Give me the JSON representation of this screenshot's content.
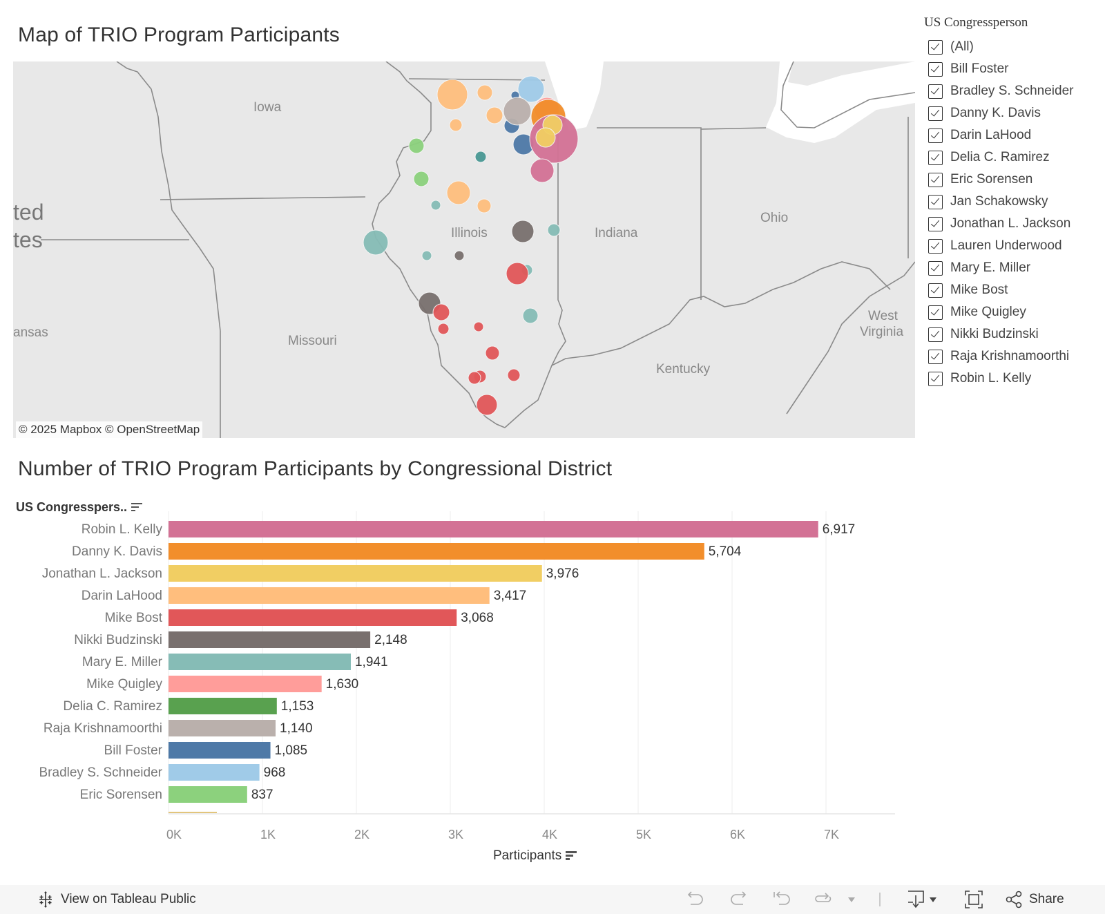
{
  "map_panel": {
    "title": "Map of TRIO Program Participants",
    "attribution": "© 2025 Mapbox  © OpenStreetMap",
    "labels": [
      {
        "text": "Iowa",
        "cls": ""
      },
      {
        "text": "Illinois",
        "cls": ""
      },
      {
        "text": "Indiana",
        "cls": ""
      },
      {
        "text": "Ohio",
        "cls": ""
      },
      {
        "text": "Missouri",
        "cls": ""
      },
      {
        "text": "Kentucky",
        "cls": ""
      },
      {
        "text": "West",
        "cls": ""
      },
      {
        "text": "Virginia",
        "cls": ""
      },
      {
        "text": "ansas",
        "cls": ""
      },
      {
        "text": "ted",
        "cls": "big"
      },
      {
        "text": "tes",
        "cls": "big"
      }
    ]
  },
  "filter": {
    "title": "US Congressperson",
    "items": [
      {
        "label": "(All)",
        "checked": true
      },
      {
        "label": "Bill Foster",
        "checked": true
      },
      {
        "label": "Bradley S. Schneider",
        "checked": true
      },
      {
        "label": "Danny K. Davis",
        "checked": true
      },
      {
        "label": "Darin LaHood",
        "checked": true
      },
      {
        "label": "Delia C. Ramirez",
        "checked": true
      },
      {
        "label": "Eric Sorensen",
        "checked": true
      },
      {
        "label": "Jan Schakowsky",
        "checked": true
      },
      {
        "label": "Jonathan L. Jackson",
        "checked": true
      },
      {
        "label": "Lauren Underwood",
        "checked": true
      },
      {
        "label": "Mary E. Miller",
        "checked": true
      },
      {
        "label": "Mike Bost",
        "checked": true
      },
      {
        "label": "Mike Quigley",
        "checked": true
      },
      {
        "label": "Nikki Budzinski",
        "checked": true
      },
      {
        "label": "Raja Krishnamoorthi",
        "checked": true
      },
      {
        "label": "Robin L. Kelly",
        "checked": true
      }
    ]
  },
  "colors": {
    "Robin L. Kelly": "#d37295",
    "Danny K. Davis": "#f28e2b",
    "Jonathan L. Jackson": "#f1ce63",
    "Darin LaHood": "#ffbe7d",
    "Mike Bost": "#e15759",
    "Nikki Budzinski": "#79706e",
    "Mary E. Miller": "#86bcb6",
    "Mike Quigley": "#ff9d9a",
    "Delia C. Ramirez": "#59a14f",
    "Raja Krishnamoorthi": "#bab0ac",
    "Bill Foster": "#4e79a7",
    "Bradley S. Schneider": "#a0cbe8",
    "Eric Sorensen": "#8cd17d",
    "Lauren Underwood": "#e2c57c",
    "Jan Schakowsky": "#499894"
  },
  "chart_panel": {
    "title": "Number of TRIO Program Participants by Congressional District",
    "row_header": "US Congresspers..",
    "axis_title": "Participants"
  },
  "chart_data": {
    "type": "bar",
    "orientation": "horizontal",
    "title": "Number of TRIO Program Participants by Congressional District",
    "xlabel": "Participants",
    "ylabel": "US Congressperson",
    "categories": [
      "Robin L. Kelly",
      "Danny K. Davis",
      "Jonathan L. Jackson",
      "Darin LaHood",
      "Mike Bost",
      "Nikki Budzinski",
      "Mary E. Miller",
      "Mike Quigley",
      "Delia C. Ramirez",
      "Raja Krishnamoorthi",
      "Bill Foster",
      "Bradley S. Schneider",
      "Eric Sorensen"
    ],
    "values": [
      6917,
      5704,
      3976,
      3417,
      3068,
      2148,
      1941,
      1630,
      1153,
      1140,
      1085,
      968,
      837
    ],
    "value_labels": [
      "6,917",
      "5,704",
      "3,976",
      "3,417",
      "3,068",
      "2,148",
      "1,941",
      "1,630",
      "1,153",
      "1,140",
      "1,085",
      "968",
      "837"
    ],
    "x_ticks": [
      "0K",
      "1K",
      "2K",
      "3K",
      "4K",
      "5K",
      "6K",
      "7K"
    ],
    "xlim": [
      0,
      7700
    ],
    "grid": true,
    "legend": "none"
  },
  "map_bubbles": [
    {
      "who": "Darin LaHood",
      "size": 22
    },
    {
      "who": "Darin LaHood",
      "size": 11
    },
    {
      "who": "Darin LaHood",
      "size": 9
    },
    {
      "who": "Darin LaHood",
      "size": 12
    },
    {
      "who": "Darin LaHood",
      "size": 17
    },
    {
      "who": "Darin LaHood",
      "size": 10
    },
    {
      "who": "Bradley S. Schneider",
      "size": 19
    },
    {
      "who": "Bill Foster",
      "size": 6
    },
    {
      "who": "Bill Foster",
      "size": 11
    },
    {
      "who": "Bill Foster",
      "size": 15
    },
    {
      "who": "Raja Krishnamoorthi",
      "size": 20
    },
    {
      "who": "Mike Quigley",
      "size": 18
    },
    {
      "who": "Danny K. Davis",
      "size": 25
    },
    {
      "who": "Robin L. Kelly",
      "size": 35
    },
    {
      "who": "Jonathan L. Jackson",
      "size": 14
    },
    {
      "who": "Jonathan L. Jackson",
      "size": 14
    },
    {
      "who": "Robin L. Kelly",
      "size": 17
    },
    {
      "who": "Eric Sorensen",
      "size": 11
    },
    {
      "who": "Eric Sorensen",
      "size": 11
    },
    {
      "who": "Jan Schakowsky",
      "size": 8
    },
    {
      "who": "Mary E. Miller",
      "size": 7
    },
    {
      "who": "Mary E. Miller",
      "size": 18
    },
    {
      "who": "Mary E. Miller",
      "size": 7
    },
    {
      "who": "Mary E. Miller",
      "size": 9
    },
    {
      "who": "Mary E. Miller",
      "size": 8
    },
    {
      "who": "Mary E. Miller",
      "size": 11
    },
    {
      "who": "Nikki Budzinski",
      "size": 16
    },
    {
      "who": "Nikki Budzinski",
      "size": 7
    },
    {
      "who": "Nikki Budzinski",
      "size": 16
    },
    {
      "who": "Mike Bost",
      "size": 16
    },
    {
      "who": "Mike Bost",
      "size": 12
    },
    {
      "who": "Mike Bost",
      "size": 8
    },
    {
      "who": "Mike Bost",
      "size": 7
    },
    {
      "who": "Mike Bost",
      "size": 10
    },
    {
      "who": "Mike Bost",
      "size": 9
    },
    {
      "who": "Mike Bost",
      "size": 9
    },
    {
      "who": "Mike Bost",
      "size": 9
    },
    {
      "who": "Mike Bost",
      "size": 15
    }
  ],
  "footer": {
    "view_on_tableau": "View on Tableau Public",
    "share": "Share"
  }
}
